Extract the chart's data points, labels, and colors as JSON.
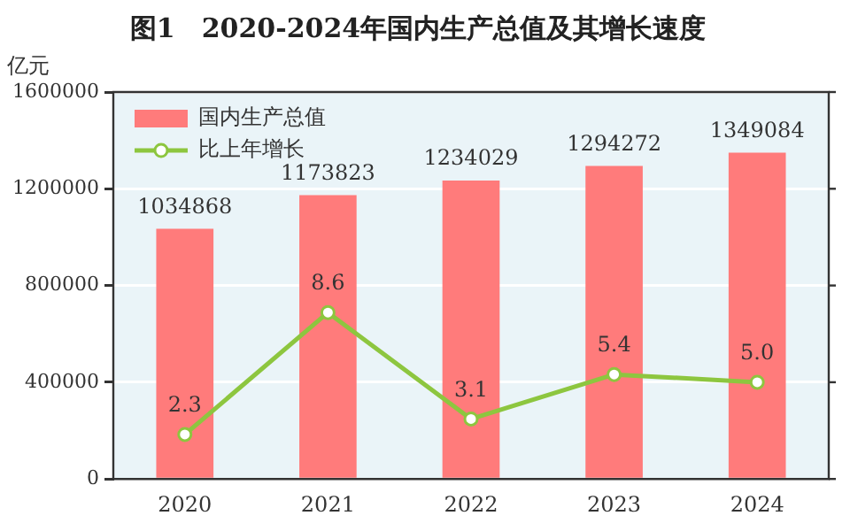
{
  "chart_data": {
    "type": "bar",
    "title": "图1　2020-2024年国内生产总值及其增长速度",
    "ylabel": "亿元",
    "categories": [
      "2020",
      "2021",
      "2022",
      "2023",
      "2024"
    ],
    "series": [
      {
        "name": "国内生产总值",
        "color": "#ff7b7b",
        "values": [
          1034868,
          1173823,
          1234029,
          1294272,
          1349084
        ]
      },
      {
        "name": "比上年增长",
        "type": "line",
        "axis": "y2",
        "color": "#8dc63f",
        "marker": "circle",
        "values": [
          2.3,
          8.6,
          3.1,
          5.4,
          5.0
        ],
        "value_labels": [
          "2.3",
          "8.6",
          "3.1",
          "5.4",
          "5.0"
        ]
      }
    ],
    "ylim": [
      0,
      1600000
    ],
    "yticks": [
      0,
      400000,
      800000,
      1200000,
      1600000
    ],
    "y2lim": [
      0,
      20
    ],
    "grid": "y",
    "legend": "top left",
    "data_labels": true
  }
}
